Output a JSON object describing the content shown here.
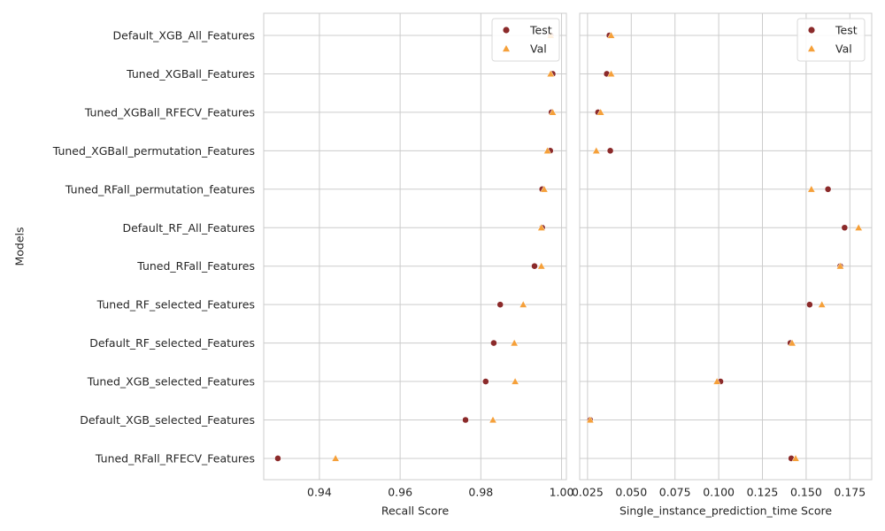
{
  "chart_data": {
    "type": "scatter",
    "ylabel": "Models",
    "categories": [
      "Default_XGB_All_Features",
      "Tuned_XGBall_Features",
      "Tuned_XGBall_RFECV_Features",
      "Tuned_XGBall_permutation_Features",
      "Tuned_RFall_permutation_features",
      "Default_RF_All_Features",
      "Tuned_RFall_Features",
      "Tuned_RF_selected_Features",
      "Default_RF_selected_Features",
      "Tuned_XGB_selected_Features",
      "Default_XGB_selected_Features",
      "Tuned_RFall_RFECV_Features"
    ],
    "colors": {
      "Test": "#8b2a2a",
      "Val": "#f5a03a"
    },
    "grid": true,
    "panels": [
      {
        "xlabel": "Recall Score",
        "xlim": [
          0.9262,
          1.0012
        ],
        "xticks": [
          0.94,
          0.96,
          0.98,
          1.0
        ],
        "xtick_labels": [
          "0.94",
          "0.96",
          "0.98",
          "1.00"
        ],
        "legend": "top-right",
        "series": [
          {
            "name": "Test",
            "marker": "circle",
            "values": [
              0.9973,
              0.9978,
              0.9975,
              0.9972,
              0.9952,
              0.9952,
              0.9933,
              0.9848,
              0.9832,
              0.9812,
              0.9762,
              0.9297
            ]
          },
          {
            "name": "Val",
            "marker": "triangle",
            "values": [
              0.9973,
              0.9973,
              0.9978,
              0.9965,
              0.9957,
              0.995,
              0.995,
              0.9905,
              0.9883,
              0.9885,
              0.983,
              0.944
            ]
          }
        ]
      },
      {
        "xlabel": "Single_instance_prediction_time Score",
        "xlim": [
          0.0205,
          0.1875
        ],
        "xticks": [
          0.025,
          0.05,
          0.075,
          0.1,
          0.125,
          0.15,
          0.175
        ],
        "xtick_labels": [
          "0.025",
          "0.050",
          "0.075",
          "0.100",
          "0.125",
          "0.150",
          "0.175"
        ],
        "legend": "top-right",
        "series": [
          {
            "name": "Test",
            "marker": "circle",
            "values": [
              0.0375,
              0.036,
              0.031,
              0.038,
              0.1625,
              0.172,
              0.1695,
              0.152,
              0.141,
              0.101,
              0.0265,
              0.1415
            ]
          },
          {
            "name": "Val",
            "marker": "triangle",
            "values": [
              0.0385,
              0.0385,
              0.0325,
              0.03,
              0.153,
              0.18,
              0.1695,
              0.159,
              0.142,
              0.099,
              0.0265,
              0.144
            ]
          }
        ]
      }
    ]
  }
}
